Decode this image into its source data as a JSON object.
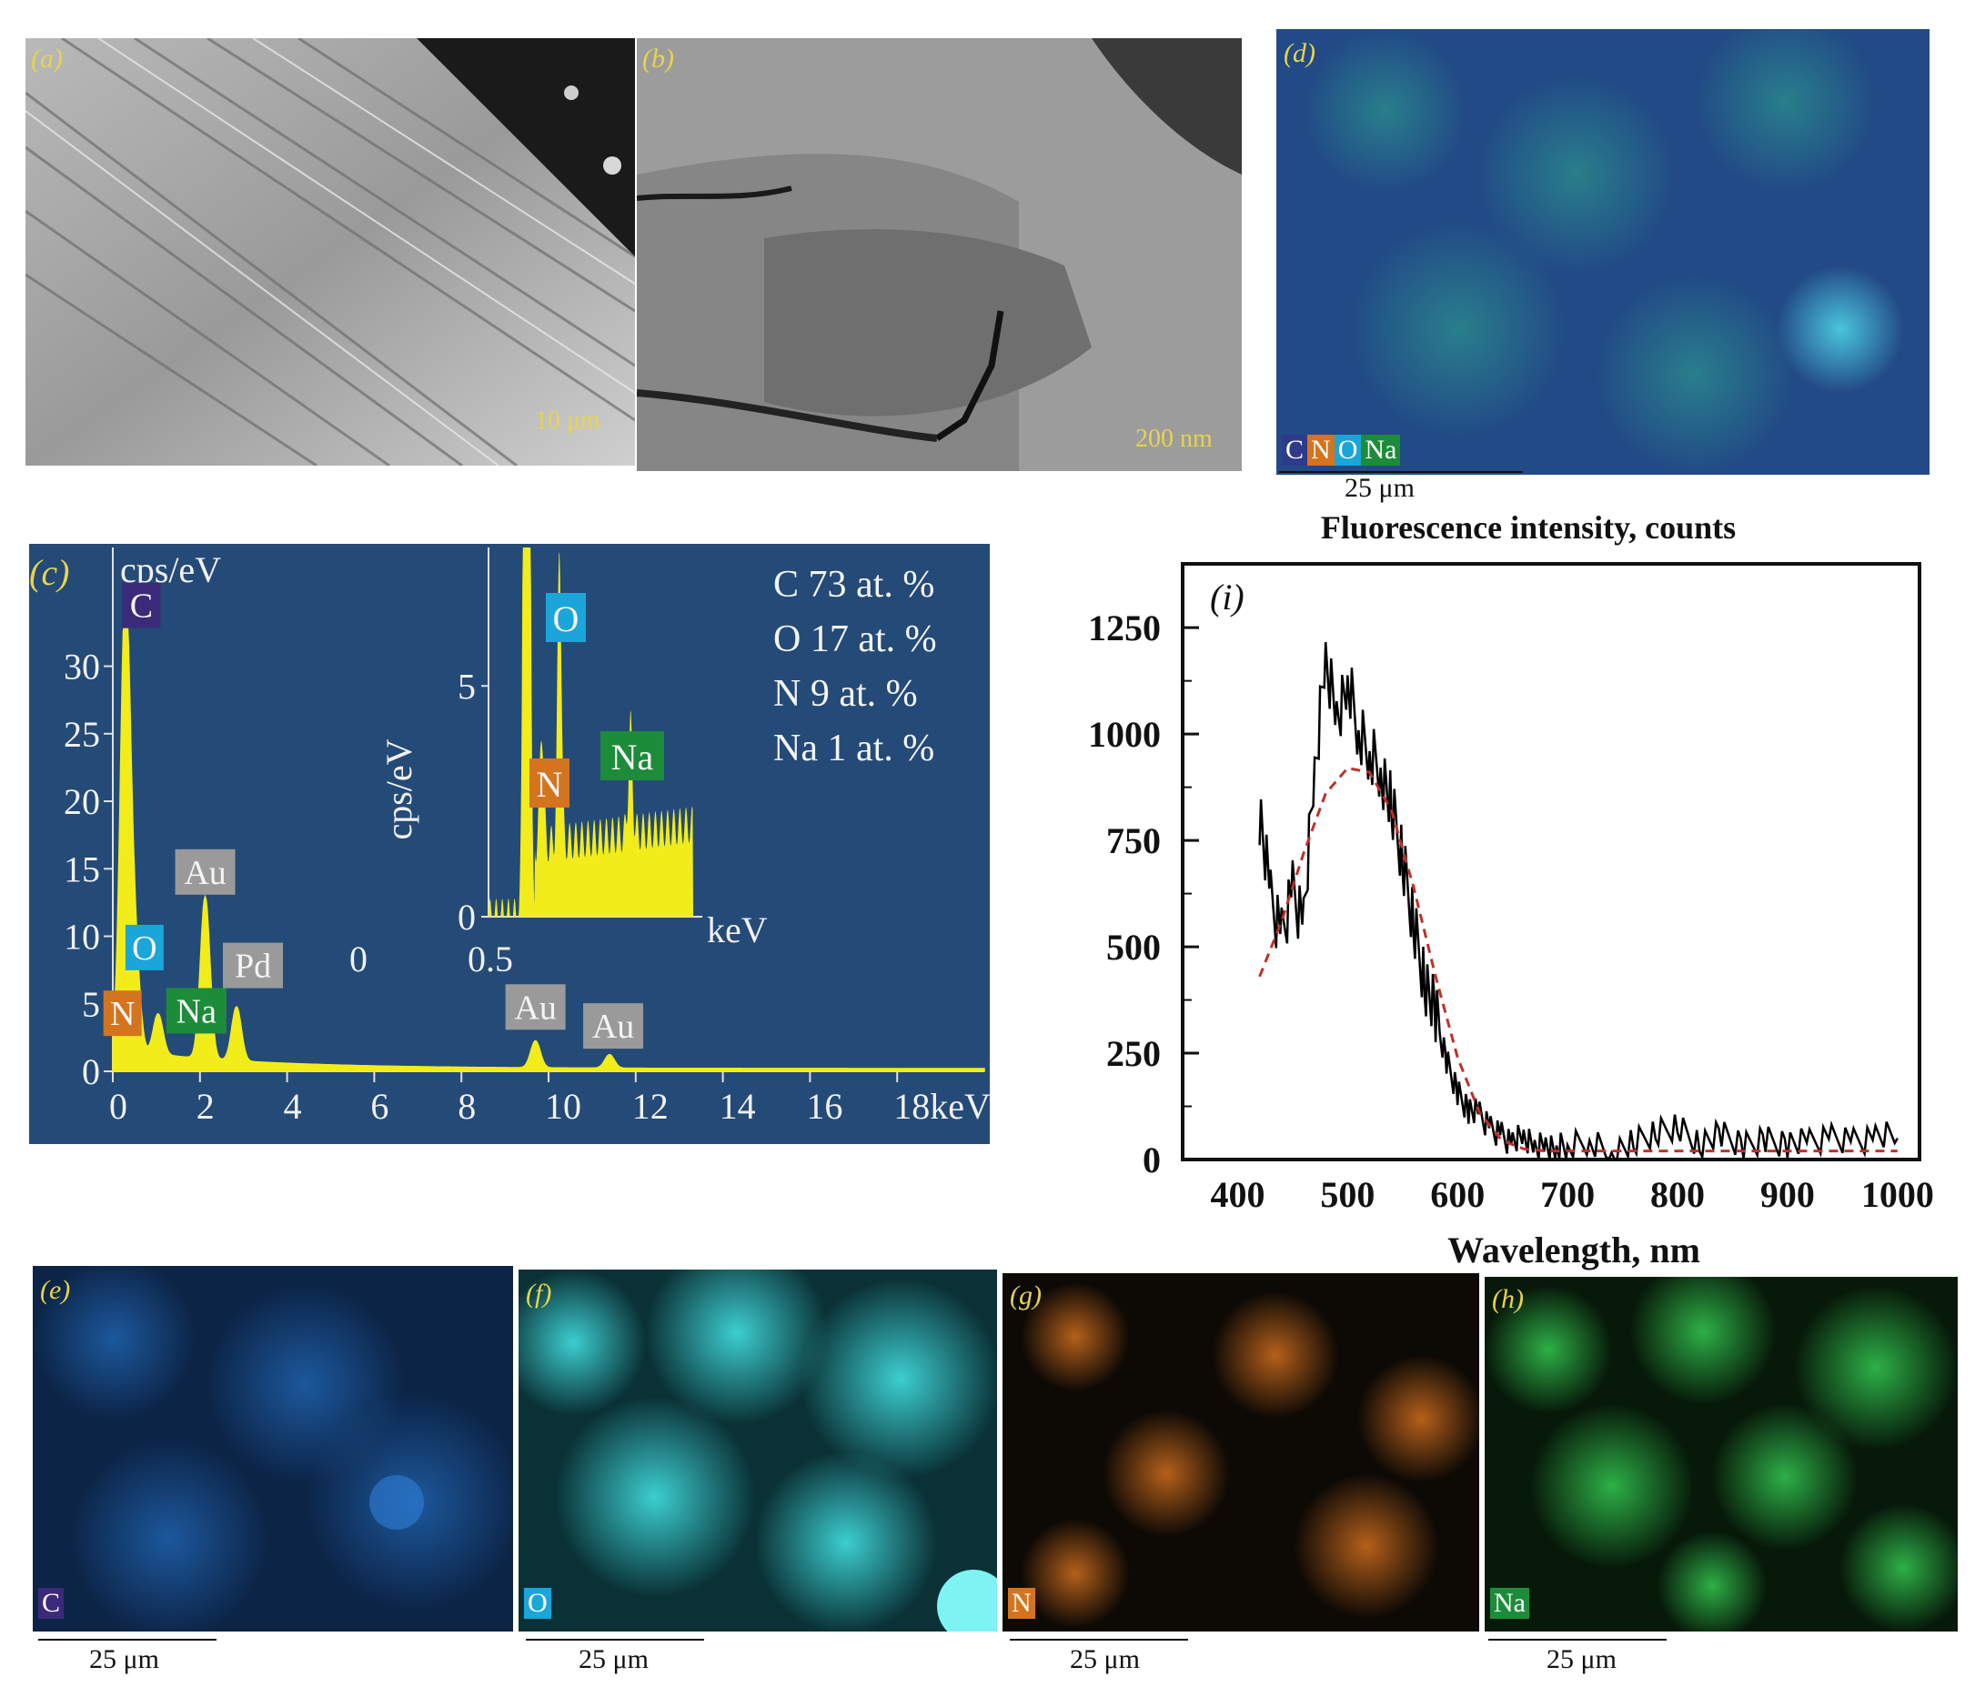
{
  "panels": {
    "a": {
      "label": "(a)",
      "scale": "10 μm"
    },
    "b": {
      "label": "(b)",
      "scale": "200 nm"
    },
    "d": {
      "label": "(d)",
      "elements": [
        "C",
        "N",
        "O",
        "Na"
      ],
      "scale": "25 μm"
    },
    "e": {
      "label": "(e)",
      "element": "C",
      "scale": "25 μm"
    },
    "f": {
      "label": "(f)",
      "element": "O",
      "scale": "25 μm"
    },
    "g": {
      "label": "(g)",
      "element": "N",
      "scale": "25 μm"
    },
    "h": {
      "label": "(h)",
      "element": "Na",
      "scale": "25 μm"
    }
  },
  "colors": {
    "C": "#3b2a7a",
    "N": "#d4741f",
    "O": "#1aa6d8",
    "Na": "#1d8c3a",
    "Au": "#9a9a9a",
    "Pd": "#9a9a9a"
  },
  "chart_data": [
    {
      "type": "area",
      "panel_label": "(c)",
      "ylabel": "cps/eV",
      "xunit": "keV",
      "xticks": [
        "0",
        "2",
        "4",
        "6",
        "8",
        "10",
        "12",
        "14",
        "16",
        "18keV"
      ],
      "yticks": [
        "0",
        "5",
        "10",
        "15",
        "20",
        "25",
        "30"
      ],
      "xlim": [
        0,
        20
      ],
      "ylim": [
        0,
        33
      ],
      "peaks": [
        {
          "element": "C",
          "x": 0.28,
          "y": 31
        },
        {
          "element": "N",
          "x": 0.39,
          "y": 4.5
        },
        {
          "element": "O",
          "x": 0.52,
          "y": 6
        },
        {
          "element": "Na",
          "x": 1.04,
          "y": 3
        },
        {
          "element": "Au",
          "x": 2.12,
          "y": 12
        },
        {
          "element": "Pd",
          "x": 2.84,
          "y": 4
        },
        {
          "element": "Au",
          "x": 9.7,
          "y": 2
        },
        {
          "element": "Au",
          "x": 11.4,
          "y": 1
        }
      ],
      "composition": [
        "C 73 at. %",
        "O 17 at. %",
        "N 9 at. %",
        "Na 1 at. %"
      ],
      "inset": {
        "ylabel": "cps/eV",
        "xunit": "keV",
        "xticks": [
          "0",
          "0.5"
        ],
        "yticks": [
          "0",
          "5"
        ],
        "peaks": [
          {
            "element": "O",
            "x": 0.52,
            "y": 6.5
          },
          {
            "element": "N",
            "x": 0.39,
            "y": 2.6
          },
          {
            "element": "Na",
            "x": 1.04,
            "y": 2.3
          }
        ]
      }
    },
    {
      "type": "line",
      "panel_label": "(i)",
      "title": "Fluorescence intensity, counts",
      "xlabel": "Wavelength, nm",
      "xlim": [
        350,
        1020
      ],
      "ylim": [
        0,
        1400
      ],
      "xticks": [
        400,
        500,
        600,
        700,
        800,
        900,
        1000
      ],
      "yticks": [
        0,
        250,
        500,
        750,
        1000,
        1250
      ],
      "series": [
        {
          "color": "#000000",
          "style": "solid",
          "x": [
            420,
            430,
            440,
            450,
            460,
            470,
            480,
            490,
            500,
            510,
            520,
            530,
            540,
            550,
            560,
            570,
            580,
            590,
            600,
            610,
            620,
            630,
            640,
            650,
            660,
            670,
            680,
            690,
            700,
            720,
            740,
            760,
            780,
            800,
            820,
            840,
            860,
            880,
            900,
            920,
            940,
            960,
            980,
            1000
          ],
          "y": [
            820,
            600,
            520,
            640,
            560,
            900,
            1180,
            1050,
            1120,
            1000,
            960,
            930,
            820,
            700,
            560,
            430,
            330,
            230,
            160,
            120,
            100,
            70,
            60,
            40,
            50,
            30,
            40,
            25,
            30,
            45,
            20,
            35,
            60,
            80,
            40,
            55,
            30,
            50,
            40,
            35,
            50,
            45,
            55,
            50
          ]
        },
        {
          "color": "#c0302a",
          "style": "dashed",
          "x": [
            420,
            440,
            460,
            480,
            500,
            520,
            540,
            560,
            580,
            600,
            620,
            640,
            660,
            680,
            700,
            750,
            800,
            850,
            900,
            950,
            1000
          ],
          "y": [
            430,
            560,
            720,
            860,
            920,
            910,
            820,
            640,
            430,
            240,
            110,
            45,
            25,
            20,
            20,
            20,
            20,
            20,
            20,
            20,
            20
          ]
        }
      ]
    }
  ]
}
